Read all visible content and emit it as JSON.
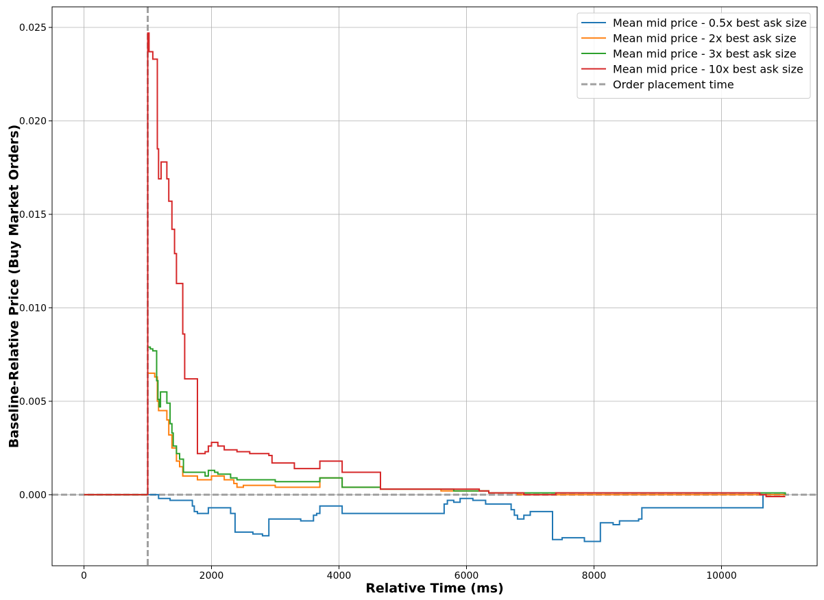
{
  "chart_data": {
    "type": "line",
    "title": "",
    "xlabel": "Relative Time (ms)",
    "ylabel": "Baseline-Relative Price (Buy Market Orders)",
    "xlim": [
      -500,
      11500
    ],
    "ylim": [
      -0.0038,
      0.0261
    ],
    "xticks": [
      0,
      2000,
      4000,
      6000,
      8000,
      10000
    ],
    "xtick_labels": [
      "0",
      "2000",
      "4000",
      "6000",
      "8000",
      "10000"
    ],
    "yticks": [
      0.0,
      0.005,
      0.01,
      0.015,
      0.02,
      0.025
    ],
    "ytick_labels": [
      "0.000",
      "0.005",
      "0.010",
      "0.015",
      "0.020",
      "0.025"
    ],
    "grid": true,
    "legend_position": "top-right",
    "series": [
      {
        "name": "Mean mid price - 0.5x best ask size",
        "color": "#1f77b4",
        "x": [
          0,
          1000,
          1150,
          1170,
          1350,
          1650,
          1700,
          1730,
          1780,
          1950,
          2300,
          2370,
          2650,
          2800,
          2900,
          3200,
          3400,
          3600,
          3650,
          3700,
          4000,
          4050,
          5600,
          5650,
          5700,
          5800,
          5900,
          6100,
          6200,
          6300,
          6600,
          6700,
          6750,
          6800,
          6900,
          7000,
          7300,
          7350,
          7450,
          7500,
          7800,
          7850,
          8100,
          8200,
          8300,
          8400,
          8700,
          8750,
          10600,
          10650,
          11000
        ],
        "y": [
          0.0,
          0.0,
          0.0,
          -0.0002,
          -0.0003,
          -0.0003,
          -0.0006,
          -0.0009,
          -0.001,
          -0.0007,
          -0.001,
          -0.002,
          -0.0021,
          -0.0022,
          -0.0013,
          -0.0013,
          -0.0014,
          -0.0011,
          -0.001,
          -0.0006,
          -0.0006,
          -0.001,
          -0.001,
          -0.0005,
          -0.0003,
          -0.0004,
          -0.0002,
          -0.0003,
          -0.0003,
          -0.0005,
          -0.0005,
          -0.0008,
          -0.0011,
          -0.0013,
          -0.0011,
          -0.0009,
          -0.0009,
          -0.0024,
          -0.0024,
          -0.0023,
          -0.0023,
          -0.0025,
          -0.0015,
          -0.0015,
          -0.0016,
          -0.0014,
          -0.0013,
          -0.0007,
          -0.0007,
          0.0,
          0.0
        ]
      },
      {
        "name": "Mean mid price - 2x best ask size",
        "color": "#ff7f0e",
        "x": [
          0,
          990,
          1000,
          1110,
          1150,
          1170,
          1200,
          1220,
          1300,
          1330,
          1380,
          1400,
          1450,
          1500,
          1550,
          1700,
          1780,
          2000,
          2200,
          2350,
          2400,
          2500,
          3000,
          3700,
          3750,
          4050,
          4600,
          4650,
          5000,
          5600,
          6350,
          6800,
          11000
        ],
        "y": [
          0.0,
          0.0,
          0.0065,
          0.0063,
          0.005,
          0.0045,
          0.0045,
          0.0045,
          0.004,
          0.0032,
          0.0025,
          0.0025,
          0.0018,
          0.0015,
          0.001,
          0.001,
          0.0008,
          0.001,
          0.0008,
          0.0006,
          0.0004,
          0.0005,
          0.0004,
          0.0009,
          0.0009,
          0.0004,
          0.0004,
          0.0003,
          0.0003,
          0.0002,
          0.0001,
          0.0,
          0.0
        ]
      },
      {
        "name": "Mean mid price - 3x best ask size",
        "color": "#2ca02c",
        "x": [
          0,
          990,
          1000,
          1040,
          1080,
          1140,
          1160,
          1180,
          1200,
          1220,
          1300,
          1350,
          1380,
          1400,
          1450,
          1500,
          1560,
          1750,
          1900,
          1950,
          2050,
          2100,
          2300,
          2400,
          2600,
          3000,
          3700,
          4050,
          4600,
          4650,
          5000,
          5600,
          5800,
          6350,
          6800,
          11000
        ],
        "y": [
          0.0,
          0.0,
          0.0079,
          0.0078,
          0.0077,
          0.0061,
          0.0051,
          0.0047,
          0.0055,
          0.0055,
          0.0049,
          0.0038,
          0.0033,
          0.0026,
          0.0022,
          0.0019,
          0.0012,
          0.0012,
          0.001,
          0.0013,
          0.0012,
          0.0011,
          0.0009,
          0.0008,
          0.0008,
          0.0007,
          0.0009,
          0.0004,
          0.0004,
          0.0003,
          0.0003,
          0.0003,
          0.0002,
          0.0001,
          0.0001,
          0.0
        ]
      },
      {
        "name": "Mean mid price - 10x best ask size",
        "color": "#d62728",
        "x": [
          0,
          990,
          1000,
          1020,
          1080,
          1150,
          1170,
          1210,
          1300,
          1330,
          1380,
          1420,
          1450,
          1550,
          1580,
          1750,
          1780,
          1900,
          1950,
          2000,
          2100,
          2200,
          2300,
          2400,
          2600,
          2700,
          2900,
          2950,
          3150,
          3300,
          3600,
          3700,
          4000,
          4050,
          4600,
          4650,
          5000,
          6200,
          6350,
          6800,
          6900,
          7300,
          7400,
          8500,
          10600,
          10700,
          11000
        ],
        "y": [
          0.0,
          0.0,
          0.0247,
          0.0237,
          0.0233,
          0.0185,
          0.0169,
          0.0178,
          0.0169,
          0.0157,
          0.0142,
          0.0129,
          0.0113,
          0.0086,
          0.0062,
          0.0062,
          0.0022,
          0.0023,
          0.0026,
          0.0028,
          0.0026,
          0.0024,
          0.0024,
          0.0023,
          0.0022,
          0.0022,
          0.0021,
          0.0017,
          0.0017,
          0.0014,
          0.0014,
          0.0018,
          0.0018,
          0.0012,
          0.0012,
          0.0003,
          0.0003,
          0.0002,
          0.0001,
          0.0001,
          0.0,
          0.0,
          0.0001,
          0.0001,
          0.0,
          -0.0001,
          -0.0001
        ]
      }
    ],
    "reference_lines": [
      {
        "name": "Order placement time",
        "orientation": "vertical",
        "x": 1000,
        "color": "#a0a0a0"
      },
      {
        "name": "",
        "orientation": "horizontal",
        "y": 0.0,
        "color": "#a0a0a0"
      }
    ],
    "legend_entries": [
      "Mean mid price - 0.5x best ask size",
      "Mean mid price - 2x best ask size",
      "Mean mid price - 3x best ask size",
      "Mean mid price - 10x best ask size",
      "Order placement time"
    ]
  }
}
